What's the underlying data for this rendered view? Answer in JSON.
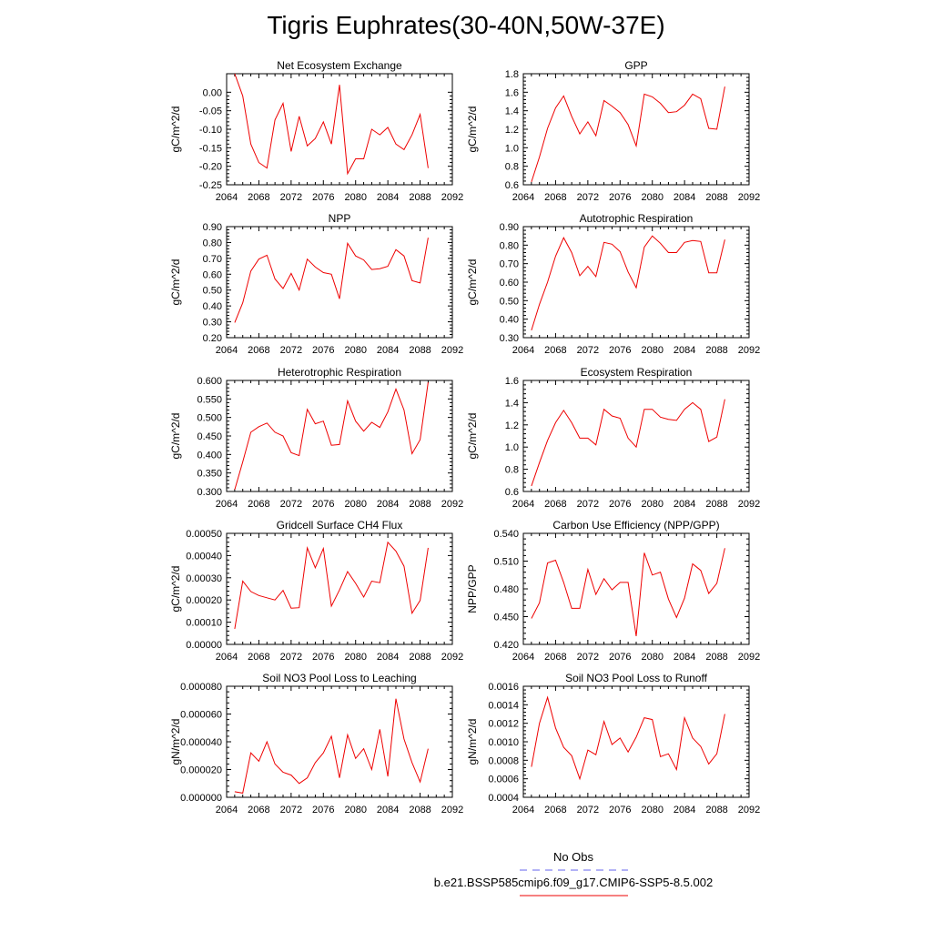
{
  "title": "Tigris Euphrates(30-40N,50W-37E)",
  "legend": {
    "obs_label": "No Obs",
    "obs_color": "#6666ee",
    "case_label": "b.e21.BSSP585cmip6.f09_g17.CMIP6-SSP5-8.5.002",
    "case_color": "#ee0000"
  },
  "chart_data": [
    {
      "type": "line",
      "title": "Net Ecosystem Exchange",
      "ylabel": "gC/m^2/d",
      "xlim": [
        2064,
        2092
      ],
      "ylim": [
        -0.25,
        0.05
      ],
      "yticks": [
        -0.25,
        -0.2,
        -0.15,
        -0.1,
        -0.05,
        0.0
      ],
      "ytick_labels": [
        "-0.25",
        "-0.20",
        "-0.15",
        "-0.10",
        "-0.05",
        "0.00"
      ],
      "xticks": [
        2064,
        2068,
        2072,
        2076,
        2080,
        2084,
        2088,
        2092
      ],
      "x": [
        2065,
        2066,
        2067,
        2068,
        2069,
        2070,
        2071,
        2072,
        2073,
        2074,
        2075,
        2076,
        2077,
        2078,
        2079,
        2080,
        2081,
        2082,
        2083,
        2084,
        2085,
        2086,
        2087,
        2088,
        2089
      ],
      "values": [
        0.05,
        -0.01,
        -0.14,
        -0.19,
        -0.205,
        -0.075,
        -0.03,
        -0.16,
        -0.065,
        -0.145,
        -0.125,
        -0.08,
        -0.14,
        0.02,
        -0.22,
        -0.18,
        -0.18,
        -0.1,
        -0.115,
        -0.095,
        -0.14,
        -0.155,
        -0.115,
        -0.06,
        -0.205
      ]
    },
    {
      "type": "line",
      "title": "GPP",
      "ylabel": "gC/m^2/d",
      "xlim": [
        2064,
        2092
      ],
      "ylim": [
        0.6,
        1.8
      ],
      "yticks": [
        0.6,
        0.8,
        1.0,
        1.2,
        1.4,
        1.6,
        1.8
      ],
      "ytick_labels": [
        "0.6",
        "0.8",
        "1.0",
        "1.2",
        "1.4",
        "1.6",
        "1.8"
      ],
      "xticks": [
        2064,
        2068,
        2072,
        2076,
        2080,
        2084,
        2088,
        2092
      ],
      "x": [
        2065,
        2066,
        2067,
        2068,
        2069,
        2070,
        2071,
        2072,
        2073,
        2074,
        2075,
        2076,
        2077,
        2078,
        2079,
        2080,
        2081,
        2082,
        2083,
        2084,
        2085,
        2086,
        2087,
        2088,
        2089
      ],
      "values": [
        0.63,
        0.9,
        1.21,
        1.43,
        1.56,
        1.34,
        1.15,
        1.28,
        1.13,
        1.51,
        1.45,
        1.38,
        1.25,
        1.02,
        1.58,
        1.55,
        1.48,
        1.38,
        1.39,
        1.46,
        1.58,
        1.53,
        1.21,
        1.2,
        1.66
      ]
    },
    {
      "type": "line",
      "title": "NPP",
      "ylabel": "gC/m^2/d",
      "xlim": [
        2064,
        2092
      ],
      "ylim": [
        0.2,
        0.9
      ],
      "yticks": [
        0.2,
        0.3,
        0.4,
        0.5,
        0.6,
        0.7,
        0.8,
        0.9
      ],
      "ytick_labels": [
        "0.20",
        "0.30",
        "0.40",
        "0.50",
        "0.60",
        "0.70",
        "0.80",
        "0.90"
      ],
      "xticks": [
        2064,
        2068,
        2072,
        2076,
        2080,
        2084,
        2088,
        2092
      ],
      "x": [
        2065,
        2066,
        2067,
        2068,
        2069,
        2070,
        2071,
        2072,
        2073,
        2074,
        2075,
        2076,
        2077,
        2078,
        2079,
        2080,
        2081,
        2082,
        2083,
        2084,
        2085,
        2086,
        2087,
        2088,
        2089
      ],
      "values": [
        0.295,
        0.42,
        0.62,
        0.695,
        0.72,
        0.57,
        0.51,
        0.605,
        0.5,
        0.695,
        0.645,
        0.61,
        0.6,
        0.445,
        0.795,
        0.715,
        0.69,
        0.63,
        0.635,
        0.65,
        0.755,
        0.715,
        0.56,
        0.545,
        0.83
      ]
    },
    {
      "type": "line",
      "title": "Autotrophic Respiration",
      "ylabel": "gC/m^2/d",
      "xlim": [
        2064,
        2092
      ],
      "ylim": [
        0.3,
        0.9
      ],
      "yticks": [
        0.3,
        0.4,
        0.5,
        0.6,
        0.7,
        0.8,
        0.9
      ],
      "ytick_labels": [
        "0.30",
        "0.40",
        "0.50",
        "0.60",
        "0.70",
        "0.80",
        "0.90"
      ],
      "xticks": [
        2064,
        2068,
        2072,
        2076,
        2080,
        2084,
        2088,
        2092
      ],
      "x": [
        2065,
        2066,
        2067,
        2068,
        2069,
        2070,
        2071,
        2072,
        2073,
        2074,
        2075,
        2076,
        2077,
        2078,
        2079,
        2080,
        2081,
        2082,
        2083,
        2084,
        2085,
        2086,
        2087,
        2088,
        2089
      ],
      "values": [
        0.34,
        0.48,
        0.6,
        0.74,
        0.84,
        0.76,
        0.635,
        0.685,
        0.63,
        0.815,
        0.805,
        0.765,
        0.655,
        0.57,
        0.79,
        0.85,
        0.81,
        0.76,
        0.76,
        0.815,
        0.825,
        0.82,
        0.65,
        0.65,
        0.83
      ]
    },
    {
      "type": "line",
      "title": "Heterotrophic Respiration",
      "ylabel": "gC/m^2/d",
      "xlim": [
        2064,
        2092
      ],
      "ylim": [
        0.3,
        0.6
      ],
      "yticks": [
        0.3,
        0.35,
        0.4,
        0.45,
        0.5,
        0.55,
        0.6
      ],
      "ytick_labels": [
        "0.300",
        "0.350",
        "0.400",
        "0.450",
        "0.500",
        "0.550",
        "0.600"
      ],
      "xticks": [
        2064,
        2068,
        2072,
        2076,
        2080,
        2084,
        2088,
        2092
      ],
      "x": [
        2065,
        2066,
        2067,
        2068,
        2069,
        2070,
        2071,
        2072,
        2073,
        2074,
        2075,
        2076,
        2077,
        2078,
        2079,
        2080,
        2081,
        2082,
        2083,
        2084,
        2085,
        2086,
        2087,
        2088,
        2089
      ],
      "values": [
        0.305,
        0.38,
        0.46,
        0.475,
        0.485,
        0.46,
        0.45,
        0.405,
        0.397,
        0.522,
        0.483,
        0.49,
        0.425,
        0.427,
        0.545,
        0.49,
        0.463,
        0.487,
        0.473,
        0.515,
        0.577,
        0.52,
        0.402,
        0.44,
        0.595
      ]
    },
    {
      "type": "line",
      "title": "Ecosystem Respiration",
      "ylabel": "gC/m^2/d",
      "xlim": [
        2064,
        2092
      ],
      "ylim": [
        0.6,
        1.6
      ],
      "yticks": [
        0.6,
        0.8,
        1.0,
        1.2,
        1.4,
        1.6
      ],
      "ytick_labels": [
        "0.6",
        "0.8",
        "1.0",
        "1.2",
        "1.4",
        "1.6"
      ],
      "xticks": [
        2064,
        2068,
        2072,
        2076,
        2080,
        2084,
        2088,
        2092
      ],
      "x": [
        2065,
        2066,
        2067,
        2068,
        2069,
        2070,
        2071,
        2072,
        2073,
        2074,
        2075,
        2076,
        2077,
        2078,
        2079,
        2080,
        2081,
        2082,
        2083,
        2084,
        2085,
        2086,
        2087,
        2088,
        2089
      ],
      "values": [
        0.65,
        0.86,
        1.06,
        1.22,
        1.33,
        1.22,
        1.08,
        1.08,
        1.02,
        1.34,
        1.28,
        1.26,
        1.08,
        1.0,
        1.34,
        1.34,
        1.27,
        1.25,
        1.24,
        1.34,
        1.4,
        1.34,
        1.05,
        1.09,
        1.43
      ]
    },
    {
      "type": "line",
      "title": "Gridcell Surface CH4 Flux",
      "ylabel": "gC/m^2/d",
      "xlim": [
        2064,
        2092
      ],
      "ylim": [
        0.0,
        0.0005
      ],
      "yticks": [
        0.0,
        0.0001,
        0.0002,
        0.0003,
        0.0004,
        0.0005
      ],
      "ytick_labels": [
        "0.00000",
        "0.00010",
        "0.00020",
        "0.00030",
        "0.00040",
        "0.00050"
      ],
      "xticks": [
        2064,
        2068,
        2072,
        2076,
        2080,
        2084,
        2088,
        2092
      ],
      "x": [
        2065,
        2066,
        2067,
        2068,
        2069,
        2070,
        2071,
        2072,
        2073,
        2074,
        2075,
        2076,
        2077,
        2078,
        2079,
        2080,
        2081,
        2082,
        2083,
        2084,
        2085,
        2086,
        2087,
        2088,
        2089
      ],
      "values": [
        7e-05,
        0.000285,
        0.000238,
        0.00022,
        0.00021,
        0.0002,
        0.000243,
        0.000163,
        0.000165,
        0.000435,
        0.000345,
        0.000432,
        0.000172,
        0.000245,
        0.000328,
        0.000275,
        0.000213,
        0.000285,
        0.000278,
        0.00046,
        0.00042,
        0.000352,
        0.00014,
        0.000198,
        0.000435
      ]
    },
    {
      "type": "line",
      "title": "Carbon Use Efficiency (NPP/GPP)",
      "ylabel": "NPP/GPP",
      "xlim": [
        2064,
        2092
      ],
      "ylim": [
        0.42,
        0.54
      ],
      "yticks": [
        0.42,
        0.45,
        0.48,
        0.51,
        0.54
      ],
      "ytick_labels": [
        "0.420",
        "0.450",
        "0.480",
        "0.510",
        "0.540"
      ],
      "xticks": [
        2064,
        2068,
        2072,
        2076,
        2080,
        2084,
        2088,
        2092
      ],
      "x": [
        2065,
        2066,
        2067,
        2068,
        2069,
        2070,
        2071,
        2072,
        2073,
        2074,
        2075,
        2076,
        2077,
        2078,
        2079,
        2080,
        2081,
        2082,
        2083,
        2084,
        2085,
        2086,
        2087,
        2088,
        2089
      ],
      "values": [
        0.448,
        0.465,
        0.508,
        0.511,
        0.487,
        0.459,
        0.459,
        0.501,
        0.474,
        0.491,
        0.479,
        0.487,
        0.487,
        0.429,
        0.519,
        0.495,
        0.498,
        0.469,
        0.449,
        0.47,
        0.507,
        0.5,
        0.475,
        0.486,
        0.524
      ]
    },
    {
      "type": "line",
      "title": "Soil NO3 Pool Loss to Leaching",
      "ylabel": "gN/m^2/d",
      "xlim": [
        2064,
        2092
      ],
      "ylim": [
        0.0,
        8e-05
      ],
      "yticks": [
        0.0,
        2e-05,
        4e-05,
        6e-05,
        8e-05
      ],
      "ytick_labels": [
        "0.000000",
        "0.000020",
        "0.000040",
        "0.000060",
        "0.000080"
      ],
      "xticks": [
        2064,
        2068,
        2072,
        2076,
        2080,
        2084,
        2088,
        2092
      ],
      "x": [
        2065,
        2066,
        2067,
        2068,
        2069,
        2070,
        2071,
        2072,
        2073,
        2074,
        2075,
        2076,
        2077,
        2078,
        2079,
        2080,
        2081,
        2082,
        2083,
        2084,
        2085,
        2086,
        2087,
        2088,
        2089
      ],
      "values": [
        4e-06,
        3e-06,
        3.2e-05,
        2.6e-05,
        4e-05,
        2.4e-05,
        1.8e-05,
        1.6e-05,
        1e-05,
        1.4e-05,
        2.5e-05,
        3.2e-05,
        4.4e-05,
        1.4e-05,
        4.5e-05,
        2.8e-05,
        3.5e-05,
        2e-05,
        4.9e-05,
        1.5e-05,
        7.1e-05,
        4.2e-05,
        2.5e-05,
        1.1e-05,
        3.5e-05
      ]
    },
    {
      "type": "line",
      "title": "Soil NO3 Pool Loss to Runoff",
      "ylabel": "gN/m^2/d",
      "xlim": [
        2064,
        2092
      ],
      "ylim": [
        0.0004,
        0.0016
      ],
      "yticks": [
        0.0004,
        0.0006,
        0.0008,
        0.001,
        0.0012,
        0.0014,
        0.0016
      ],
      "ytick_labels": [
        "0.0004",
        "0.0006",
        "0.0008",
        "0.0010",
        "0.0012",
        "0.0014",
        "0.0016"
      ],
      "xticks": [
        2064,
        2068,
        2072,
        2076,
        2080,
        2084,
        2088,
        2092
      ],
      "x": [
        2065,
        2066,
        2067,
        2068,
        2069,
        2070,
        2071,
        2072,
        2073,
        2074,
        2075,
        2076,
        2077,
        2078,
        2079,
        2080,
        2081,
        2082,
        2083,
        2084,
        2085,
        2086,
        2087,
        2088,
        2089
      ],
      "values": [
        0.00073,
        0.0012,
        0.00148,
        0.00115,
        0.00094,
        0.00085,
        0.0006,
        0.00091,
        0.00086,
        0.00122,
        0.00097,
        0.00104,
        0.00089,
        0.00105,
        0.00126,
        0.00124,
        0.00084,
        0.00087,
        0.0007,
        0.00126,
        0.00104,
        0.00095,
        0.00076,
        0.00087,
        0.0013
      ]
    }
  ]
}
